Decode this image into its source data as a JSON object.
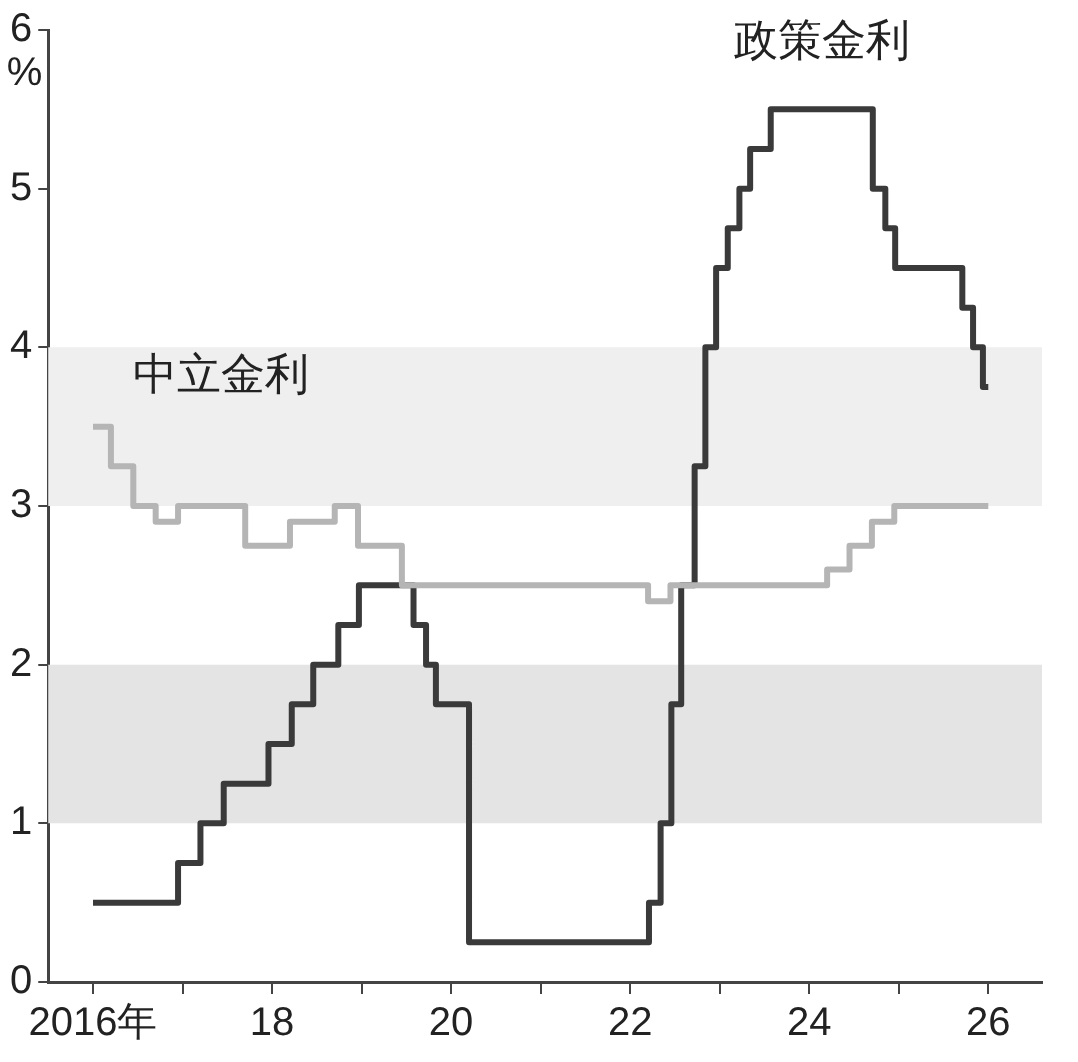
{
  "chart_data": {
    "type": "step",
    "ylabel": "%",
    "xlim": [
      2015.5,
      2026.6
    ],
    "ylim": [
      0,
      6
    ],
    "xticks": [
      {
        "value": 2016,
        "label": "2016年"
      },
      {
        "value": 2017,
        "label": null
      },
      {
        "value": 2018,
        "label": "18"
      },
      {
        "value": 2019,
        "label": null
      },
      {
        "value": 2020,
        "label": "20"
      },
      {
        "value": 2021,
        "label": null
      },
      {
        "value": 2022,
        "label": "22"
      },
      {
        "value": 2023,
        "label": null
      },
      {
        "value": 2024,
        "label": "24"
      },
      {
        "value": 2025,
        "label": null
      },
      {
        "value": 2026,
        "label": "26"
      }
    ],
    "yticks": [
      0,
      1,
      2,
      3,
      4,
      5,
      6
    ],
    "grid": false,
    "legend": false,
    "marker": "none",
    "line_style": "solid",
    "bands": [
      {
        "axis": "y",
        "from": 1,
        "to": 2,
        "color": "#e4e4e4"
      },
      {
        "axis": "y",
        "from": 3,
        "to": 4,
        "color": "#efefef"
      }
    ],
    "series": [
      {
        "name": "中立金利",
        "color": "#b5b5b5",
        "x": [
          2016.0,
          2016.2,
          2016.45,
          2016.7,
          2016.95,
          2017.7,
          2018.2,
          2018.7,
          2018.96,
          2019.45,
          2022.2,
          2022.45,
          2024.2,
          2024.45,
          2024.7,
          2024.95,
          2026.0
        ],
        "values": [
          3.5,
          3.25,
          3.0,
          2.9,
          3.0,
          2.75,
          2.9,
          3.0,
          2.75,
          2.5,
          2.4,
          2.5,
          2.6,
          2.75,
          2.9,
          3.0,
          3.0
        ]
      },
      {
        "name": "政策金利",
        "color": "#3a3a3a",
        "x": [
          2016.0,
          2016.95,
          2017.2,
          2017.46,
          2017.96,
          2018.22,
          2018.46,
          2018.74,
          2018.97,
          2019.58,
          2019.72,
          2019.83,
          2020.2,
          2022.21,
          2022.34,
          2022.46,
          2022.57,
          2022.72,
          2022.84,
          2022.96,
          2023.09,
          2023.22,
          2023.34,
          2023.57,
          2024.71,
          2024.85,
          2024.96,
          2025.71,
          2025.83,
          2025.94,
          2026.0
        ],
        "values": [
          0.5,
          0.75,
          1.0,
          1.25,
          1.5,
          1.75,
          2.0,
          2.25,
          2.5,
          2.25,
          2.0,
          1.75,
          0.25,
          0.5,
          1.0,
          1.75,
          2.5,
          3.25,
          4.0,
          4.5,
          4.75,
          5.0,
          5.25,
          5.5,
          5.0,
          4.75,
          4.5,
          4.25,
          4.0,
          3.75,
          3.75
        ]
      }
    ]
  }
}
